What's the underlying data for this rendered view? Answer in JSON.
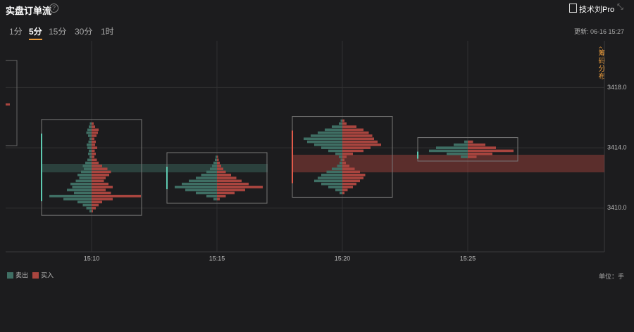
{
  "header": {
    "title": "实盘订单流",
    "brand": "技术刘Pro",
    "update": "更新: 06-16 15:27"
  },
  "tabs": {
    "items": [
      "1分",
      "5分",
      "15分",
      "30分",
      "1时"
    ],
    "active": 1
  },
  "side_label": "筹码分布",
  "unit": "单位：手",
  "chart_data": {
    "type": "footprint",
    "categories": [
      "15:10",
      "15:15",
      "15:20",
      "15:25"
    ],
    "ylim": [
      3407.1,
      3421.1
    ],
    "yticks": [
      {
        "value": 3410,
        "label": "3410.0"
      },
      {
        "value": 3414,
        "label": "3414.0"
      },
      {
        "value": 3418,
        "label": "3418.0"
      }
    ],
    "grid": true,
    "series": [
      {
        "name": "卖出",
        "color": "#3f6f64"
      },
      {
        "name": "买入",
        "color": "#a9453f"
      }
    ],
    "clusters": [
      {
        "prices": [
          3415.6,
          3415.4,
          3415.2,
          3415.0,
          3414.8,
          3414.6,
          3414.4,
          3414.2,
          3414.0,
          3413.8,
          3413.6,
          3413.4,
          3413.2,
          3413.0,
          3412.8,
          3412.6,
          3412.4,
          3412.2,
          3412.0,
          3411.8,
          3411.6,
          3411.4,
          3411.2,
          3411.0,
          3410.8,
          3410.6,
          3410.4,
          3410.2,
          3410.0,
          3409.8
        ],
        "sell": [
          5,
          8,
          12,
          15,
          10,
          6,
          9,
          14,
          12,
          8,
          10,
          6,
          12,
          18,
          25,
          22,
          30,
          40,
          35,
          45,
          60,
          55,
          70,
          50,
          120,
          80,
          40,
          25,
          15,
          6
        ],
        "buy": [
          6,
          10,
          20,
          18,
          14,
          8,
          12,
          10,
          16,
          9,
          12,
          8,
          15,
          20,
          30,
          45,
          55,
          50,
          40,
          35,
          48,
          60,
          40,
          55,
          140,
          60,
          30,
          20,
          12,
          4
        ]
      },
      {
        "prices": [
          3413.4,
          3413.2,
          3413.0,
          3412.8,
          3412.6,
          3412.4,
          3412.2,
          3412.0,
          3411.8,
          3411.6,
          3411.4,
          3411.2,
          3411.0,
          3410.8,
          3410.6
        ],
        "sell": [
          4,
          6,
          10,
          14,
          20,
          30,
          45,
          60,
          80,
          100,
          120,
          90,
          60,
          30,
          10
        ],
        "buy": [
          3,
          5,
          8,
          12,
          18,
          25,
          40,
          55,
          70,
          90,
          130,
          80,
          50,
          25,
          8
        ]
      },
      {
        "prices": [
          3415.8,
          3415.6,
          3415.4,
          3415.2,
          3415.0,
          3414.8,
          3414.6,
          3414.4,
          3414.2,
          3414.0,
          3413.8,
          3413.6,
          3413.4,
          3413.2,
          3413.0,
          3412.8,
          3412.6,
          3412.4,
          3412.2,
          3412.0,
          3411.8,
          3411.6,
          3411.4,
          3411.2,
          3411.0
        ],
        "sell": [
          5,
          10,
          30,
          50,
          70,
          90,
          110,
          100,
          80,
          60,
          40,
          20,
          10,
          5,
          8,
          15,
          30,
          45,
          60,
          70,
          80,
          60,
          40,
          20,
          8
        ],
        "buy": [
          6,
          12,
          40,
          60,
          75,
          85,
          90,
          100,
          110,
          80,
          60,
          30,
          12,
          6,
          10,
          20,
          35,
          50,
          65,
          60,
          50,
          40,
          30,
          15,
          6
        ]
      },
      {
        "prices": [
          3414.4,
          3414.2,
          3414.0,
          3413.8,
          3413.6,
          3413.4
        ],
        "sell": [
          10,
          40,
          90,
          110,
          60,
          20
        ],
        "buy": [
          15,
          50,
          80,
          130,
          70,
          25
        ]
      }
    ]
  }
}
